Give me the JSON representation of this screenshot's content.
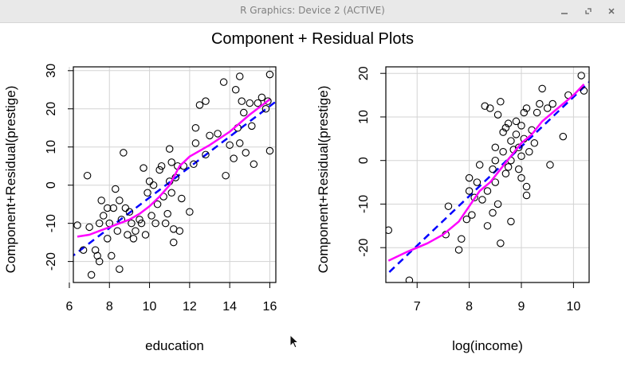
{
  "window": {
    "title": "R Graphics: Device 2 (ACTIVE)",
    "buttons": [
      "minimize",
      "restore",
      "close"
    ]
  },
  "colors": {
    "fit_line": "#0000ff",
    "smooth_line": "#ff00ff",
    "points": "#000000",
    "grid": "#d3d3d3"
  },
  "chart_data": [
    {
      "type": "scatter",
      "title": "Component + Residual Plots",
      "xlabel": "education",
      "ylabel": "Component+Residual(prestige)",
      "xlim": [
        6.2,
        16.3
      ],
      "ylim": [
        -25.5,
        31
      ],
      "xticks": [
        6,
        8,
        10,
        12,
        14,
        16
      ],
      "yticks": [
        -20,
        -10,
        0,
        10,
        20,
        30
      ],
      "grid": true,
      "fit_line": [
        [
          6.0,
          -19.2
        ],
        [
          16.5,
          22.7
        ]
      ],
      "smooth": [
        [
          6.4,
          -13.5
        ],
        [
          7.0,
          -13
        ],
        [
          7.5,
          -12
        ],
        [
          8.0,
          -11
        ],
        [
          8.5,
          -10
        ],
        [
          9.0,
          -9
        ],
        [
          9.5,
          -7.5
        ],
        [
          10.0,
          -5.5
        ],
        [
          10.5,
          -3
        ],
        [
          11.0,
          0
        ],
        [
          11.2,
          2
        ],
        [
          11.5,
          5
        ],
        [
          12.0,
          7.5
        ],
        [
          13.0,
          10.5
        ],
        [
          14.0,
          14
        ],
        [
          15.0,
          18.5
        ],
        [
          16.0,
          22.5
        ]
      ],
      "points": [
        [
          6.4,
          -10.5
        ],
        [
          6.7,
          -17
        ],
        [
          6.9,
          2.5
        ],
        [
          7.0,
          -11
        ],
        [
          7.1,
          -23.5
        ],
        [
          7.3,
          -17
        ],
        [
          7.4,
          -18.5
        ],
        [
          7.5,
          -20
        ],
        [
          7.5,
          -10
        ],
        [
          7.6,
          -4
        ],
        [
          7.7,
          -8
        ],
        [
          7.9,
          -14
        ],
        [
          7.9,
          -6
        ],
        [
          8.0,
          -10
        ],
        [
          8.1,
          -18.5
        ],
        [
          8.2,
          -6
        ],
        [
          8.3,
          -1
        ],
        [
          8.4,
          -12
        ],
        [
          8.5,
          -4
        ],
        [
          8.5,
          -22
        ],
        [
          8.6,
          -9
        ],
        [
          8.7,
          8.5
        ],
        [
          8.8,
          -6
        ],
        [
          8.9,
          -13
        ],
        [
          9.0,
          -7
        ],
        [
          9.1,
          -10
        ],
        [
          9.2,
          -14
        ],
        [
          9.3,
          -12
        ],
        [
          9.5,
          -9
        ],
        [
          9.6,
          -10
        ],
        [
          9.7,
          4.5
        ],
        [
          9.8,
          -13
        ],
        [
          9.9,
          -2
        ],
        [
          10.0,
          1
        ],
        [
          10.1,
          -8
        ],
        [
          10.2,
          0
        ],
        [
          10.3,
          -10
        ],
        [
          10.4,
          -5
        ],
        [
          10.5,
          4
        ],
        [
          10.6,
          5
        ],
        [
          10.7,
          -3
        ],
        [
          10.8,
          -10
        ],
        [
          10.9,
          -7.5
        ],
        [
          11.0,
          1
        ],
        [
          11.0,
          9.5
        ],
        [
          11.1,
          -2
        ],
        [
          11.1,
          6
        ],
        [
          11.2,
          -11.5
        ],
        [
          11.2,
          -15
        ],
        [
          11.3,
          2
        ],
        [
          11.4,
          5
        ],
        [
          11.5,
          -12
        ],
        [
          11.6,
          -3.5
        ],
        [
          11.7,
          5
        ],
        [
          12.0,
          -7
        ],
        [
          12.2,
          5.5
        ],
        [
          12.3,
          11
        ],
        [
          12.3,
          15
        ],
        [
          12.5,
          21
        ],
        [
          12.8,
          22
        ],
        [
          12.8,
          8
        ],
        [
          13.0,
          13
        ],
        [
          13.4,
          13.5
        ],
        [
          13.7,
          27
        ],
        [
          13.8,
          2.5
        ],
        [
          14.0,
          10.5
        ],
        [
          14.2,
          7
        ],
        [
          14.3,
          25
        ],
        [
          14.4,
          15
        ],
        [
          14.5,
          11
        ],
        [
          14.5,
          28.5
        ],
        [
          14.6,
          22
        ],
        [
          14.7,
          19
        ],
        [
          14.8,
          8.5
        ],
        [
          15.0,
          21.5
        ],
        [
          15.1,
          15.5
        ],
        [
          15.2,
          5.5
        ],
        [
          15.4,
          21.5
        ],
        [
          15.6,
          23
        ],
        [
          15.8,
          20
        ],
        [
          15.9,
          22
        ],
        [
          16.0,
          29
        ],
        [
          16.0,
          9
        ]
      ]
    },
    {
      "type": "scatter",
      "title": "",
      "xlabel": "log(income)",
      "ylabel": "Component+Residual(prestige)",
      "xlim": [
        6.4,
        10.3
      ],
      "ylim": [
        -28,
        21.5
      ],
      "xticks": [
        7,
        8,
        9,
        10
      ],
      "yticks": [
        -20,
        -10,
        0,
        10,
        20
      ],
      "grid": true,
      "fit_line": [
        [
          6.3,
          -27.5
        ],
        [
          10.3,
          18
        ]
      ],
      "smooth": [
        [
          6.45,
          -23
        ],
        [
          6.8,
          -21
        ],
        [
          7.2,
          -19
        ],
        [
          7.5,
          -17
        ],
        [
          7.8,
          -14
        ],
        [
          8.0,
          -10.5
        ],
        [
          8.2,
          -7
        ],
        [
          8.4,
          -5
        ],
        [
          8.6,
          -2
        ],
        [
          8.8,
          1
        ],
        [
          9.0,
          4
        ],
        [
          9.2,
          6
        ],
        [
          9.4,
          9
        ],
        [
          9.6,
          11
        ],
        [
          9.8,
          13
        ],
        [
          10.0,
          15
        ],
        [
          10.2,
          17.5
        ]
      ],
      "points": [
        [
          6.45,
          -16
        ],
        [
          6.85,
          -27.5
        ],
        [
          7.55,
          -17
        ],
        [
          7.6,
          -10.5
        ],
        [
          7.8,
          -20.5
        ],
        [
          7.85,
          -18
        ],
        [
          7.95,
          -13.5
        ],
        [
          8.0,
          -4
        ],
        [
          8.0,
          -7
        ],
        [
          8.05,
          -12.5
        ],
        [
          8.1,
          -8.5
        ],
        [
          8.15,
          -5
        ],
        [
          8.2,
          -1
        ],
        [
          8.25,
          -9
        ],
        [
          8.3,
          12.5
        ],
        [
          8.35,
          -7
        ],
        [
          8.35,
          -15
        ],
        [
          8.4,
          12
        ],
        [
          8.45,
          -2
        ],
        [
          8.45,
          -12
        ],
        [
          8.5,
          0
        ],
        [
          8.5,
          3
        ],
        [
          8.5,
          -5
        ],
        [
          8.55,
          -10
        ],
        [
          8.55,
          10.5
        ],
        [
          8.6,
          13.5
        ],
        [
          8.6,
          -19
        ],
        [
          8.65,
          2
        ],
        [
          8.65,
          6.5
        ],
        [
          8.7,
          -3
        ],
        [
          8.7,
          7.5
        ],
        [
          8.75,
          8.5
        ],
        [
          8.75,
          -1.5
        ],
        [
          8.8,
          0
        ],
        [
          8.8,
          4.5
        ],
        [
          8.8,
          -14
        ],
        [
          8.85,
          2.5
        ],
        [
          8.9,
          6
        ],
        [
          8.9,
          9
        ],
        [
          8.95,
          -2
        ],
        [
          8.95,
          3
        ],
        [
          9.0,
          8
        ],
        [
          9.0,
          1
        ],
        [
          9.0,
          -4
        ],
        [
          9.05,
          11
        ],
        [
          9.05,
          5
        ],
        [
          9.1,
          12
        ],
        [
          9.1,
          -6
        ],
        [
          9.1,
          -8
        ],
        [
          9.15,
          2
        ],
        [
          9.2,
          7
        ],
        [
          9.25,
          4
        ],
        [
          9.3,
          11
        ],
        [
          9.35,
          13
        ],
        [
          9.4,
          16.5
        ],
        [
          9.5,
          12
        ],
        [
          9.55,
          -1
        ],
        [
          9.6,
          13
        ],
        [
          9.8,
          5.5
        ],
        [
          9.9,
          15
        ],
        [
          10.15,
          19.5
        ],
        [
          10.2,
          16
        ]
      ]
    }
  ]
}
